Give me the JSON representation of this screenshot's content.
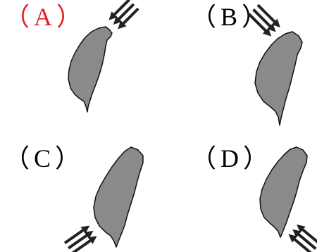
{
  "options": [
    {
      "label": "（A）",
      "color": "#e02020",
      "wind_direction": "from-northeast",
      "arrow_position": "northeast-tip"
    },
    {
      "label": "（B）",
      "color": "#000000",
      "wind_direction": "from-northwest",
      "arrow_position": "north-tip"
    },
    {
      "label": "（C）",
      "color": "#000000",
      "wind_direction": "from-southwest",
      "arrow_position": "southwest-coast"
    },
    {
      "label": "（D）",
      "color": "#000000",
      "wind_direction": "from-southeast",
      "arrow_position": "southern-tip"
    }
  ],
  "island_fill": "#8c8c8c",
  "arrow_color": "#333333",
  "icons": [
    "taiwan-island-shape",
    "wind-arrows-icon"
  ]
}
